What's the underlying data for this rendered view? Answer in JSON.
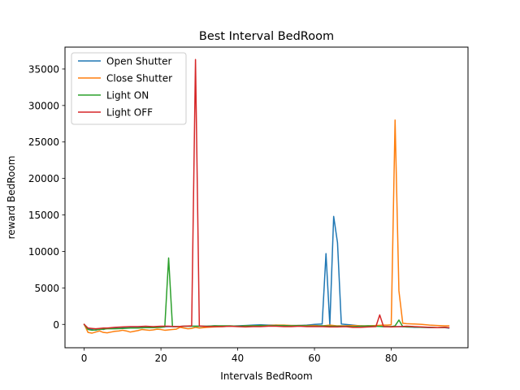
{
  "chart_data": {
    "type": "line",
    "title": "Best Interval BedRoom",
    "xlabel": "Intervals BedRoom",
    "ylabel": "reward BedRoom",
    "xlim": [
      -5,
      100
    ],
    "ylim": [
      -3200,
      38000
    ],
    "xticks": [
      0,
      20,
      40,
      60,
      80
    ],
    "yticks": [
      0,
      5000,
      10000,
      15000,
      20000,
      25000,
      30000,
      35000
    ],
    "grid": false,
    "legend_position": "top-left",
    "series": [
      {
        "name": "Open Shutter",
        "color": "#1f77b4",
        "points": [
          [
            0,
            0
          ],
          [
            1,
            -600
          ],
          [
            2,
            -700
          ],
          [
            3,
            -800
          ],
          [
            4,
            -600
          ],
          [
            5,
            -700
          ],
          [
            6,
            -500
          ],
          [
            8,
            -550
          ],
          [
            10,
            -500
          ],
          [
            12,
            -450
          ],
          [
            14,
            -450
          ],
          [
            16,
            -400
          ],
          [
            18,
            -400
          ],
          [
            20,
            -350
          ],
          [
            22,
            -300
          ],
          [
            24,
            -300
          ],
          [
            26,
            -250
          ],
          [
            28,
            -250
          ],
          [
            30,
            -250
          ],
          [
            32,
            -250
          ],
          [
            34,
            -200
          ],
          [
            36,
            -250
          ],
          [
            38,
            -250
          ],
          [
            40,
            -200
          ],
          [
            42,
            -150
          ],
          [
            44,
            -100
          ],
          [
            46,
            -50
          ],
          [
            48,
            -100
          ],
          [
            50,
            -100
          ],
          [
            52,
            -150
          ],
          [
            54,
            -150
          ],
          [
            56,
            -150
          ],
          [
            58,
            -100
          ],
          [
            60,
            0
          ],
          [
            62,
            50
          ],
          [
            63,
            9700
          ],
          [
            64,
            -100
          ],
          [
            65,
            14800
          ],
          [
            66,
            11200
          ],
          [
            67,
            50
          ],
          [
            68,
            0
          ],
          [
            70,
            -100
          ],
          [
            72,
            -200
          ],
          [
            74,
            -250
          ],
          [
            76,
            -250
          ],
          [
            78,
            -300
          ],
          [
            80,
            -300
          ],
          [
            82,
            -300
          ],
          [
            84,
            -350
          ],
          [
            86,
            -400
          ],
          [
            88,
            -400
          ],
          [
            90,
            -450
          ],
          [
            92,
            -450
          ],
          [
            94,
            -450
          ],
          [
            95,
            -500
          ]
        ]
      },
      {
        "name": "Close Shutter",
        "color": "#ff7f0e",
        "points": [
          [
            0,
            0
          ],
          [
            1,
            -1100
          ],
          [
            2,
            -1200
          ],
          [
            3,
            -1050
          ],
          [
            4,
            -900
          ],
          [
            5,
            -1100
          ],
          [
            6,
            -1150
          ],
          [
            7,
            -1050
          ],
          [
            8,
            -950
          ],
          [
            9,
            -900
          ],
          [
            10,
            -800
          ],
          [
            11,
            -900
          ],
          [
            12,
            -1050
          ],
          [
            13,
            -950
          ],
          [
            14,
            -850
          ],
          [
            15,
            -700
          ],
          [
            16,
            -750
          ],
          [
            17,
            -800
          ],
          [
            18,
            -750
          ],
          [
            19,
            -650
          ],
          [
            20,
            -700
          ],
          [
            21,
            -800
          ],
          [
            22,
            -750
          ],
          [
            23,
            -700
          ],
          [
            24,
            -650
          ],
          [
            25,
            -400
          ],
          [
            26,
            -500
          ],
          [
            27,
            -600
          ],
          [
            28,
            -550
          ],
          [
            29,
            -400
          ],
          [
            30,
            -500
          ],
          [
            32,
            -400
          ],
          [
            34,
            -350
          ],
          [
            36,
            -300
          ],
          [
            38,
            -250
          ],
          [
            40,
            -250
          ],
          [
            42,
            -200
          ],
          [
            44,
            -200
          ],
          [
            46,
            -150
          ],
          [
            48,
            -150
          ],
          [
            50,
            -100
          ],
          [
            52,
            -100
          ],
          [
            54,
            -150
          ],
          [
            56,
            -150
          ],
          [
            58,
            -150
          ],
          [
            60,
            -150
          ],
          [
            62,
            -200
          ],
          [
            64,
            -100
          ],
          [
            66,
            -200
          ],
          [
            68,
            -200
          ],
          [
            70,
            -150
          ],
          [
            72,
            -200
          ],
          [
            74,
            -200
          ],
          [
            76,
            -150
          ],
          [
            78,
            -100
          ],
          [
            79,
            -100
          ],
          [
            80,
            -50
          ],
          [
            81,
            28000
          ],
          [
            82,
            4600
          ],
          [
            83,
            150
          ],
          [
            84,
            100
          ],
          [
            86,
            50
          ],
          [
            88,
            0
          ],
          [
            90,
            -100
          ],
          [
            92,
            -150
          ],
          [
            94,
            -200
          ],
          [
            95,
            -200
          ]
        ]
      },
      {
        "name": "Light ON",
        "color": "#2ca02c",
        "points": [
          [
            0,
            0
          ],
          [
            1,
            -700
          ],
          [
            2,
            -800
          ],
          [
            3,
            -750
          ],
          [
            4,
            -700
          ],
          [
            5,
            -650
          ],
          [
            6,
            -600
          ],
          [
            8,
            -600
          ],
          [
            10,
            -550
          ],
          [
            12,
            -500
          ],
          [
            14,
            -500
          ],
          [
            16,
            -450
          ],
          [
            18,
            -450
          ],
          [
            20,
            -400
          ],
          [
            21,
            -350
          ],
          [
            22,
            9100
          ],
          [
            23,
            -300
          ],
          [
            24,
            -300
          ],
          [
            26,
            -250
          ],
          [
            28,
            -250
          ],
          [
            30,
            -250
          ],
          [
            32,
            -250
          ],
          [
            34,
            -200
          ],
          [
            36,
            -200
          ],
          [
            38,
            -200
          ],
          [
            40,
            -250
          ],
          [
            42,
            -200
          ],
          [
            44,
            -200
          ],
          [
            46,
            -150
          ],
          [
            48,
            -200
          ],
          [
            50,
            -150
          ],
          [
            52,
            -150
          ],
          [
            54,
            -200
          ],
          [
            56,
            -150
          ],
          [
            58,
            -200
          ],
          [
            60,
            -250
          ],
          [
            62,
            -200
          ],
          [
            64,
            -250
          ],
          [
            66,
            -250
          ],
          [
            68,
            -250
          ],
          [
            70,
            -300
          ],
          [
            72,
            -250
          ],
          [
            74,
            -200
          ],
          [
            76,
            -250
          ],
          [
            78,
            -300
          ],
          [
            80,
            -300
          ],
          [
            81,
            -200
          ],
          [
            82,
            600
          ],
          [
            83,
            -300
          ],
          [
            84,
            -350
          ],
          [
            86,
            -350
          ],
          [
            88,
            -400
          ],
          [
            90,
            -400
          ],
          [
            92,
            -450
          ],
          [
            94,
            -400
          ],
          [
            95,
            -450
          ]
        ]
      },
      {
        "name": "Light OFF",
        "color": "#d62728",
        "points": [
          [
            0,
            0
          ],
          [
            1,
            -500
          ],
          [
            2,
            -550
          ],
          [
            3,
            -600
          ],
          [
            4,
            -550
          ],
          [
            5,
            -500
          ],
          [
            6,
            -500
          ],
          [
            8,
            -400
          ],
          [
            10,
            -350
          ],
          [
            12,
            -300
          ],
          [
            14,
            -300
          ],
          [
            16,
            -250
          ],
          [
            18,
            -300
          ],
          [
            20,
            -250
          ],
          [
            22,
            -250
          ],
          [
            24,
            -300
          ],
          [
            26,
            -250
          ],
          [
            28,
            -200
          ],
          [
            29,
            36300
          ],
          [
            30,
            -200
          ],
          [
            31,
            -250
          ],
          [
            32,
            -300
          ],
          [
            34,
            -300
          ],
          [
            36,
            -300
          ],
          [
            38,
            -250
          ],
          [
            40,
            -300
          ],
          [
            42,
            -350
          ],
          [
            44,
            -300
          ],
          [
            46,
            -300
          ],
          [
            48,
            -250
          ],
          [
            50,
            -250
          ],
          [
            52,
            -300
          ],
          [
            54,
            -300
          ],
          [
            56,
            -250
          ],
          [
            58,
            -300
          ],
          [
            60,
            -300
          ],
          [
            62,
            -300
          ],
          [
            64,
            -350
          ],
          [
            66,
            -350
          ],
          [
            68,
            -300
          ],
          [
            70,
            -400
          ],
          [
            72,
            -400
          ],
          [
            74,
            -350
          ],
          [
            76,
            -300
          ],
          [
            77,
            1300
          ],
          [
            78,
            -300
          ],
          [
            80,
            -350
          ],
          [
            82,
            -300
          ],
          [
            84,
            -250
          ],
          [
            86,
            -300
          ],
          [
            88,
            -350
          ],
          [
            90,
            -400
          ],
          [
            92,
            -450
          ],
          [
            94,
            -400
          ],
          [
            95,
            -450
          ]
        ]
      }
    ]
  }
}
